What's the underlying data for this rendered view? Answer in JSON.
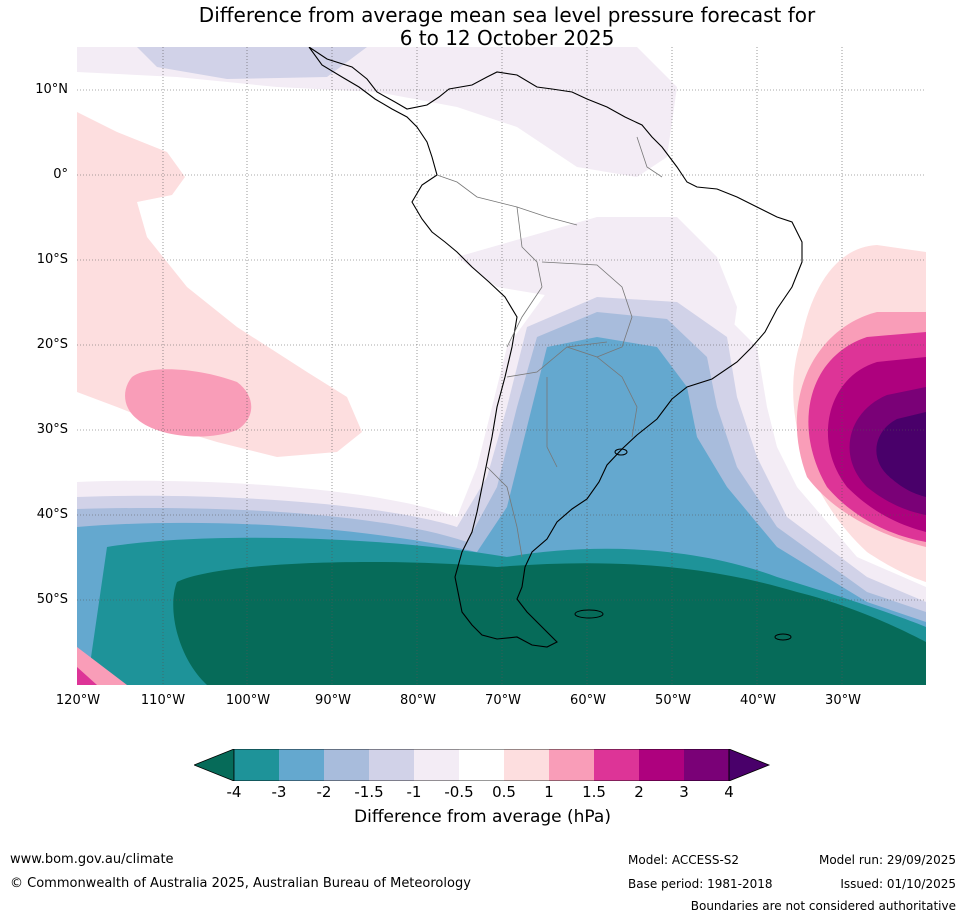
{
  "title": {
    "line1": "Difference from average mean sea level pressure forecast for",
    "line2": "6 to 12 October 2025"
  },
  "lat_ticks": [
    "10°N",
    "0°",
    "10°S",
    "20°S",
    "30°S",
    "40°S",
    "50°S"
  ],
  "lon_ticks": [
    "120°W",
    "110°W",
    "100°W",
    "90°W",
    "80°W",
    "70°W",
    "60°W",
    "50°W",
    "40°W",
    "30°W"
  ],
  "colorbar": {
    "title": "Difference from average (hPa)",
    "labels": [
      "-4",
      "-3",
      "-2",
      "-1.5",
      "-1",
      "-0.5",
      "0.5",
      "1",
      "1.5",
      "2",
      "3",
      "4"
    ],
    "colors": {
      "below_-4": "#066b59",
      "-4_-3": "#1e9399",
      "-3_-2": "#64a8cf",
      "-2_-1.5": "#a8bcdc",
      "-1.5_-1": "#d1d2e8",
      "-1_-0.5": "#f3ecf5",
      "-0.5_0.5": "#ffffff",
      "0.5_1": "#fddedf",
      "1_1.5": "#f99db8",
      "1.5_2": "#dd3497",
      "2_3": "#ae017e",
      "3_4": "#7a0177",
      "above_4": "#49006a"
    }
  },
  "footer": {
    "website": "www.bom.gov.au/climate",
    "copyright": "© Commonwealth of Australia 2025, Australian Bureau of Meteorology",
    "model": "Model: ACCESS-S2",
    "base_period": "Base period: 1981-2018",
    "model_run": "Model run: 29/09/2025",
    "issued": "Issued: 01/10/2025",
    "disclaimer": "Boundaries are not considered authoritative"
  }
}
